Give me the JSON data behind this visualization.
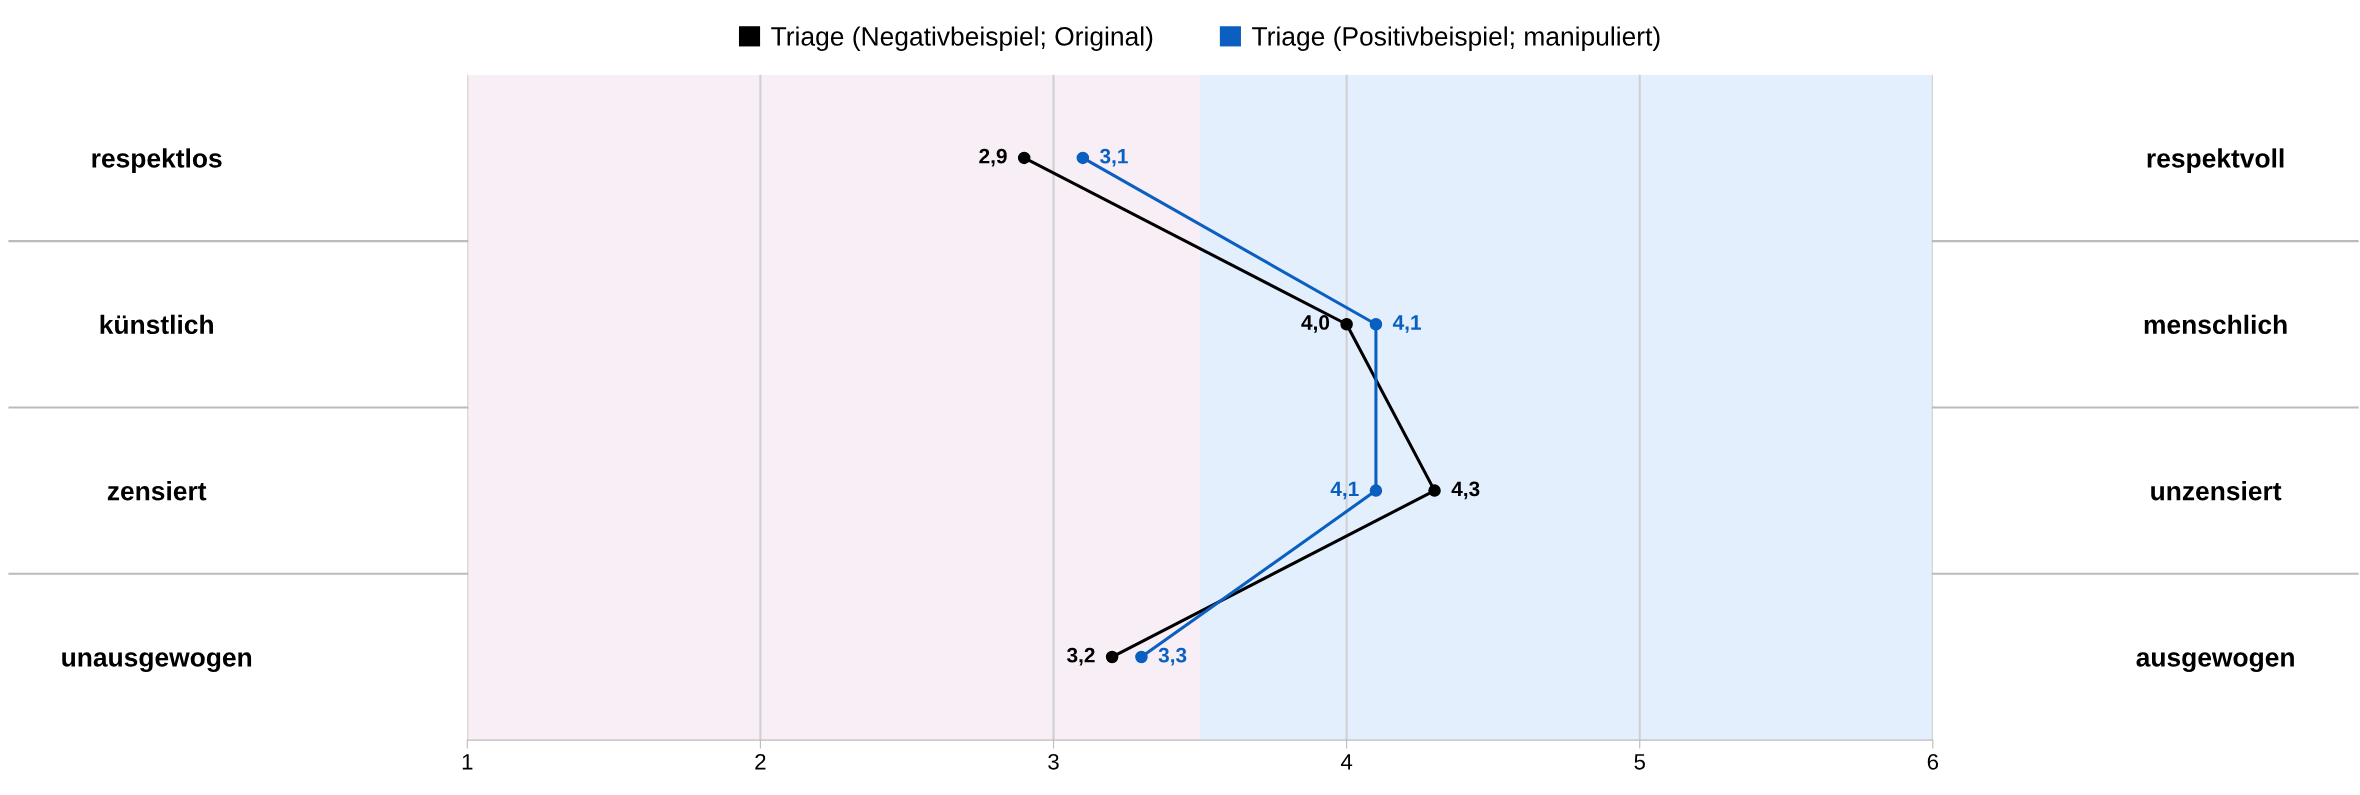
{
  "chart_data": {
    "type": "line",
    "orientation": "horizontal",
    "categories": [
      "respektlos",
      "künstlich",
      "zensiert",
      "unausgewogen"
    ],
    "y2_categories": [
      "respektvoll",
      "menschlich",
      "unzensiert",
      "ausgewogen"
    ],
    "series": [
      {
        "name": "Triage (Negativbeispiel; Original)",
        "color": "#000000",
        "values": [
          2.9,
          4.0,
          4.3,
          3.2
        ],
        "value_labels": [
          "2,9",
          "4,0",
          "4,3",
          "3,2"
        ]
      },
      {
        "name": "Triage (Positivbeispiel; manipuliert)",
        "color": "#0a5fc0",
        "values": [
          3.1,
          4.1,
          4.1,
          3.3
        ],
        "value_labels": [
          "3,1",
          "4,1",
          "4,1",
          "3,3"
        ]
      }
    ],
    "xlim": [
      1,
      6
    ],
    "xticks": [
      1,
      2,
      3,
      4,
      5,
      6
    ],
    "bands": [
      {
        "axis": "x",
        "from": 1,
        "to": 3.5,
        "color": "#f7eef6"
      },
      {
        "axis": "x",
        "from": 3.5,
        "to": 6,
        "color": "#e3effd"
      }
    ],
    "grid": "x",
    "legend": "top",
    "marker": "circle",
    "line_style": "solid"
  }
}
